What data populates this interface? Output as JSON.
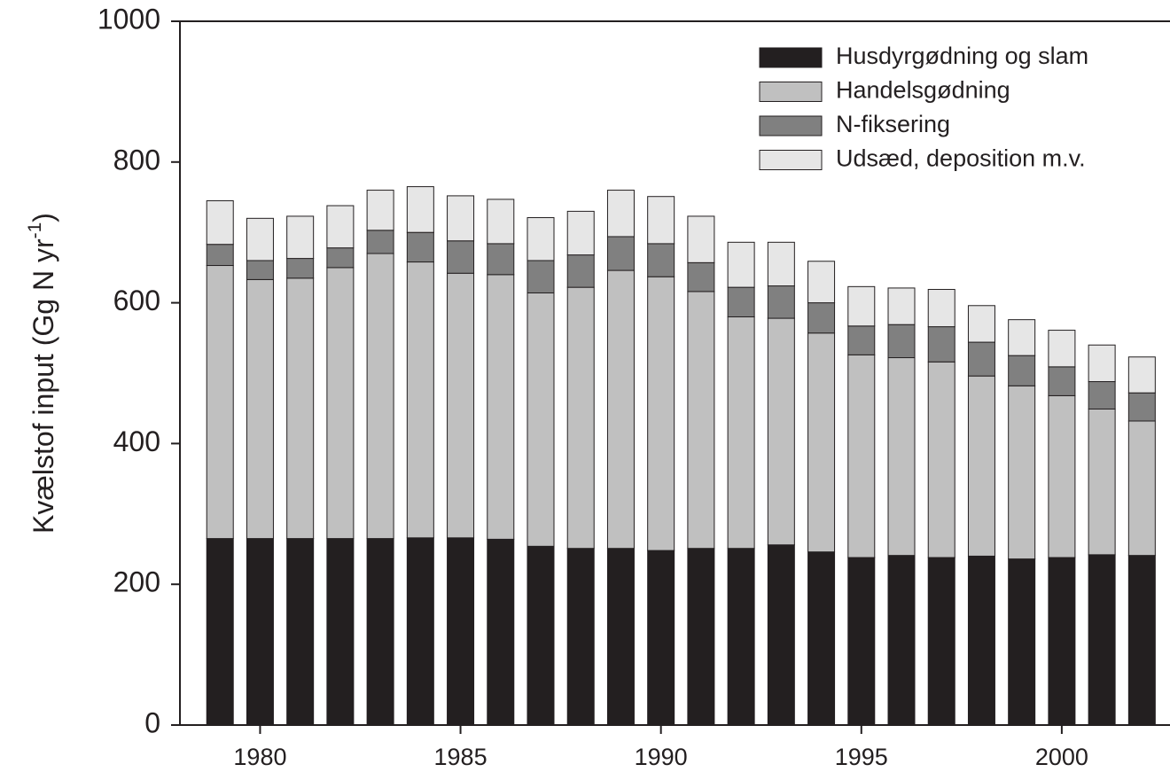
{
  "chart_data": {
    "type": "stacked-bar",
    "x": [
      1979,
      1980,
      1981,
      1982,
      1983,
      1984,
      1985,
      1986,
      1987,
      1988,
      1989,
      1990,
      1991,
      1992,
      1993,
      1994,
      1995,
      1996,
      1997,
      1998,
      1999,
      2000,
      2001,
      2002
    ],
    "series": [
      {
        "name": "Husdyrgødning og slam",
        "color": "#231f20",
        "values": [
          265,
          265,
          265,
          265,
          265,
          266,
          266,
          264,
          254,
          251,
          251,
          248,
          251,
          251,
          256,
          246,
          238,
          241,
          238,
          240,
          236,
          238,
          242,
          241
        ]
      },
      {
        "name": "Handelsgødning",
        "color": "#c0c0c0",
        "values": [
          388,
          368,
          370,
          385,
          405,
          392,
          376,
          376,
          360,
          371,
          395,
          389,
          365,
          329,
          322,
          311,
          288,
          281,
          278,
          256,
          246,
          230,
          207,
          191
        ]
      },
      {
        "name": "N-fiksering",
        "color": "#808080",
        "values": [
          30,
          27,
          28,
          28,
          33,
          42,
          46,
          44,
          46,
          46,
          48,
          47,
          41,
          42,
          46,
          43,
          41,
          47,
          50,
          48,
          43,
          41,
          39,
          40
        ]
      },
      {
        "name": "Udsæd, deposition m.v.",
        "color": "#e6e6e6",
        "values": [
          62,
          60,
          60,
          60,
          57,
          65,
          64,
          63,
          61,
          62,
          66,
          67,
          66,
          64,
          62,
          59,
          56,
          52,
          53,
          52,
          51,
          52,
          52,
          51
        ]
      }
    ],
    "ylabel": {
      "text": "Kvælstof input (Gg N yr",
      "sup": "-1",
      "end": ")"
    },
    "xlim": [
      1978,
      2002.7
    ],
    "xticks": [
      1980,
      1985,
      1990,
      1995,
      2000
    ],
    "ylim": [
      0,
      1000
    ],
    "yticks": [
      0,
      200,
      400,
      600,
      800,
      1000
    ],
    "legend": "upper right"
  }
}
